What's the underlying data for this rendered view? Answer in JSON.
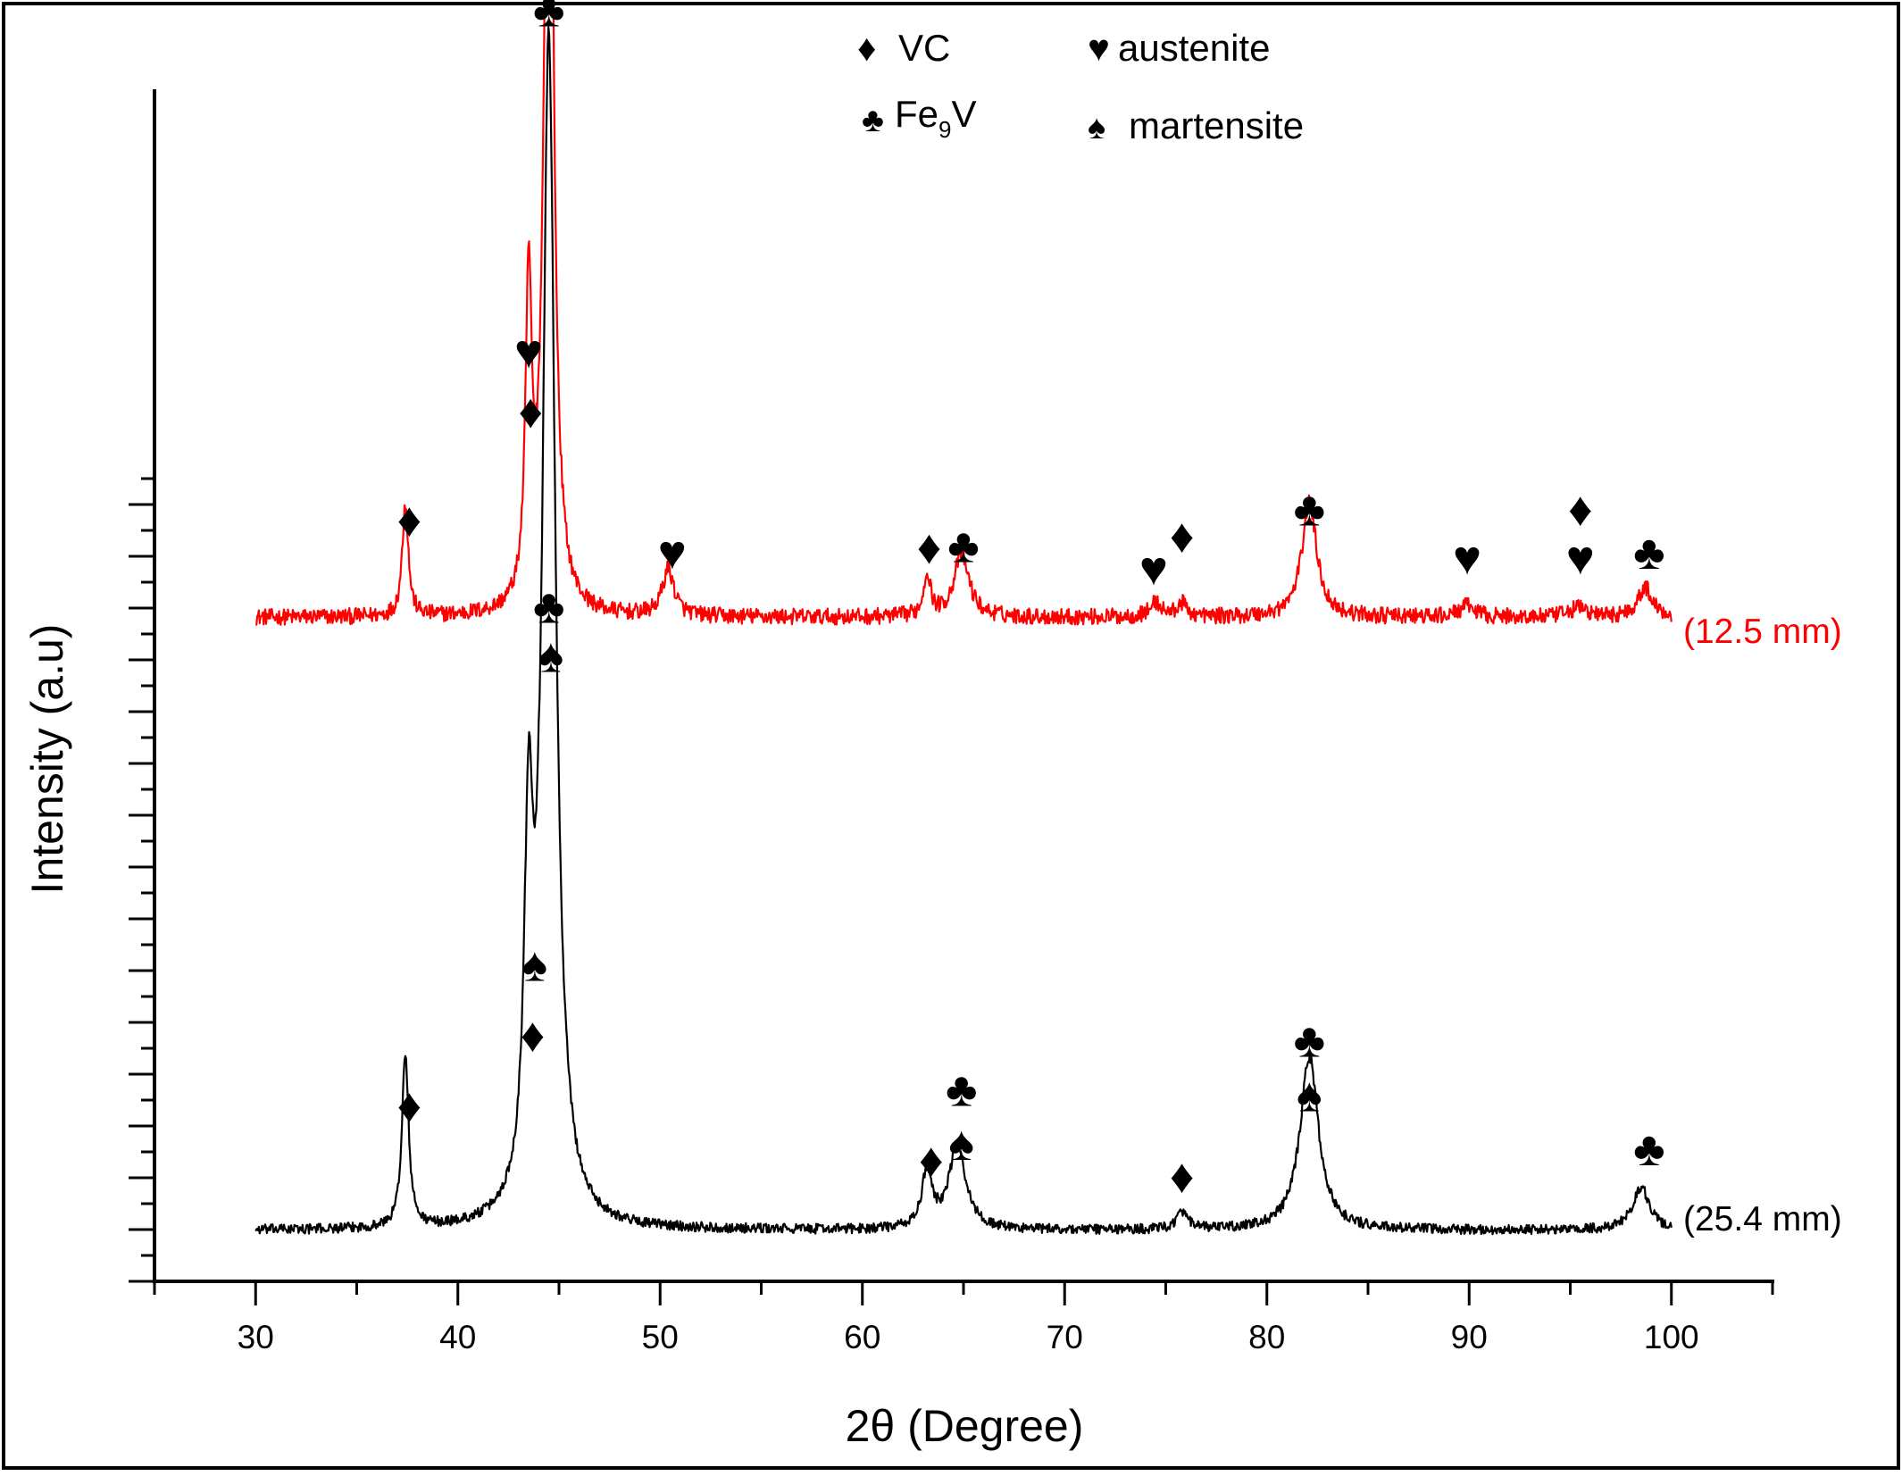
{
  "chart_data": {
    "type": "line",
    "title": "",
    "xlabel": "2θ (Degree)",
    "ylabel": "Intensity (a.u)",
    "xlim": [
      25,
      105
    ],
    "ylim": [
      0,
      100
    ],
    "x_ticks": [
      30,
      40,
      50,
      60,
      70,
      80,
      90,
      100
    ],
    "x_tick_labels": [
      "30",
      "40",
      "50",
      "60",
      "70",
      "80",
      "90",
      "100"
    ],
    "y_tick_labels_visible": false,
    "legend": {
      "position": "top-center",
      "entries": [
        {
          "symbol": "♦",
          "phase": "VC",
          "text": "VC"
        },
        {
          "symbol": "♥",
          "phase": "austenite",
          "text": "austenite"
        },
        {
          "symbol": "♣",
          "phase": "Fe9V",
          "base": "Fe",
          "sub": "9",
          "tail": "V"
        },
        {
          "symbol": "♠",
          "phase": "martensite",
          "text": "martensite"
        }
      ]
    },
    "series": [
      {
        "name": "(12.5 mm)",
        "color": "#ff0000",
        "baseline": 56.5,
        "noise": 0.35,
        "peaks": [
          {
            "x": 37.4,
            "h": 10.5,
            "w": 0.18
          },
          {
            "x": 43.5,
            "h": 29.0,
            "w": 0.18
          },
          {
            "x": 44.5,
            "h": 98.5,
            "w": 0.25
          },
          {
            "x": 50.4,
            "h": 4.3,
            "w": 0.35
          },
          {
            "x": 63.2,
            "h": 4.0,
            "w": 0.2
          },
          {
            "x": 64.9,
            "h": 5.8,
            "w": 0.45
          },
          {
            "x": 74.5,
            "h": 1.3,
            "w": 0.35
          },
          {
            "x": 75.8,
            "h": 1.2,
            "w": 0.3
          },
          {
            "x": 82.1,
            "h": 10.5,
            "w": 0.45
          },
          {
            "x": 89.9,
            "h": 1.0,
            "w": 0.5
          },
          {
            "x": 95.4,
            "h": 0.9,
            "w": 0.5
          },
          {
            "x": 98.7,
            "h": 2.7,
            "w": 0.45
          }
        ]
      },
      {
        "name": "(25.4 mm)",
        "color": "#000000",
        "baseline": 0,
        "noise": 0.45,
        "peaks": [
          {
            "x": 37.4,
            "h": 15.8,
            "w": 0.2
          },
          {
            "x": 43.5,
            "h": 32.0,
            "w": 0.25
          },
          {
            "x": 44.5,
            "h": 109.0,
            "w": 0.38
          },
          {
            "x": 63.2,
            "h": 5.2,
            "w": 0.3
          },
          {
            "x": 64.7,
            "h": 7.8,
            "w": 0.5
          },
          {
            "x": 75.8,
            "h": 1.5,
            "w": 0.35
          },
          {
            "x": 82.1,
            "h": 16.0,
            "w": 0.55
          },
          {
            "x": 98.5,
            "h": 4.0,
            "w": 0.5
          }
        ]
      }
    ],
    "series_labels": [
      {
        "text": "(12.5 mm)",
        "color": "#ff0000"
      },
      {
        "text": "(25.4 mm)",
        "color": "#000000"
      }
    ],
    "annotations": [
      {
        "symbol": "♦",
        "x": 37.6,
        "y": 64
      },
      {
        "symbol": "♦",
        "x": 43.6,
        "y": 74
      },
      {
        "symbol": "♥",
        "x": 43.5,
        "y": 79.5
      },
      {
        "symbol": "♣",
        "x": 44.5,
        "y": 111
      },
      {
        "symbol": "♥",
        "x": 50.6,
        "y": 61
      },
      {
        "symbol": "♦",
        "x": 63.3,
        "y": 61.5
      },
      {
        "symbol": "♣",
        "x": 65.0,
        "y": 61.6
      },
      {
        "symbol": "♥",
        "x": 74.4,
        "y": 59.5
      },
      {
        "symbol": "♦",
        "x": 75.8,
        "y": 62.5
      },
      {
        "symbol": "♣",
        "x": 82.1,
        "y": 65
      },
      {
        "symbol": "♥",
        "x": 89.9,
        "y": 60.5
      },
      {
        "symbol": "♦",
        "x": 95.5,
        "y": 65
      },
      {
        "symbol": "♥",
        "x": 95.5,
        "y": 60.5
      },
      {
        "symbol": "♣",
        "x": 98.9,
        "y": 61
      },
      {
        "symbol": "♣",
        "x": 44.5,
        "y": 56
      },
      {
        "symbol": "♠",
        "x": 44.6,
        "y": 51.5
      },
      {
        "symbol": "♦",
        "x": 37.6,
        "y": 10
      },
      {
        "symbol": "♠",
        "x": 43.8,
        "y": 23
      },
      {
        "symbol": "♦",
        "x": 43.7,
        "y": 16.5
      },
      {
        "symbol": "♣",
        "x": 64.9,
        "y": 11.5
      },
      {
        "symbol": "♠",
        "x": 64.9,
        "y": 6.5
      },
      {
        "symbol": "♦",
        "x": 63.4,
        "y": 5
      },
      {
        "symbol": "♦",
        "x": 75.8,
        "y": 3.5
      },
      {
        "symbol": "♣",
        "x": 82.1,
        "y": 16
      },
      {
        "symbol": "♠",
        "x": 82.1,
        "y": 11
      },
      {
        "symbol": "♣",
        "x": 98.9,
        "y": 6
      }
    ]
  }
}
